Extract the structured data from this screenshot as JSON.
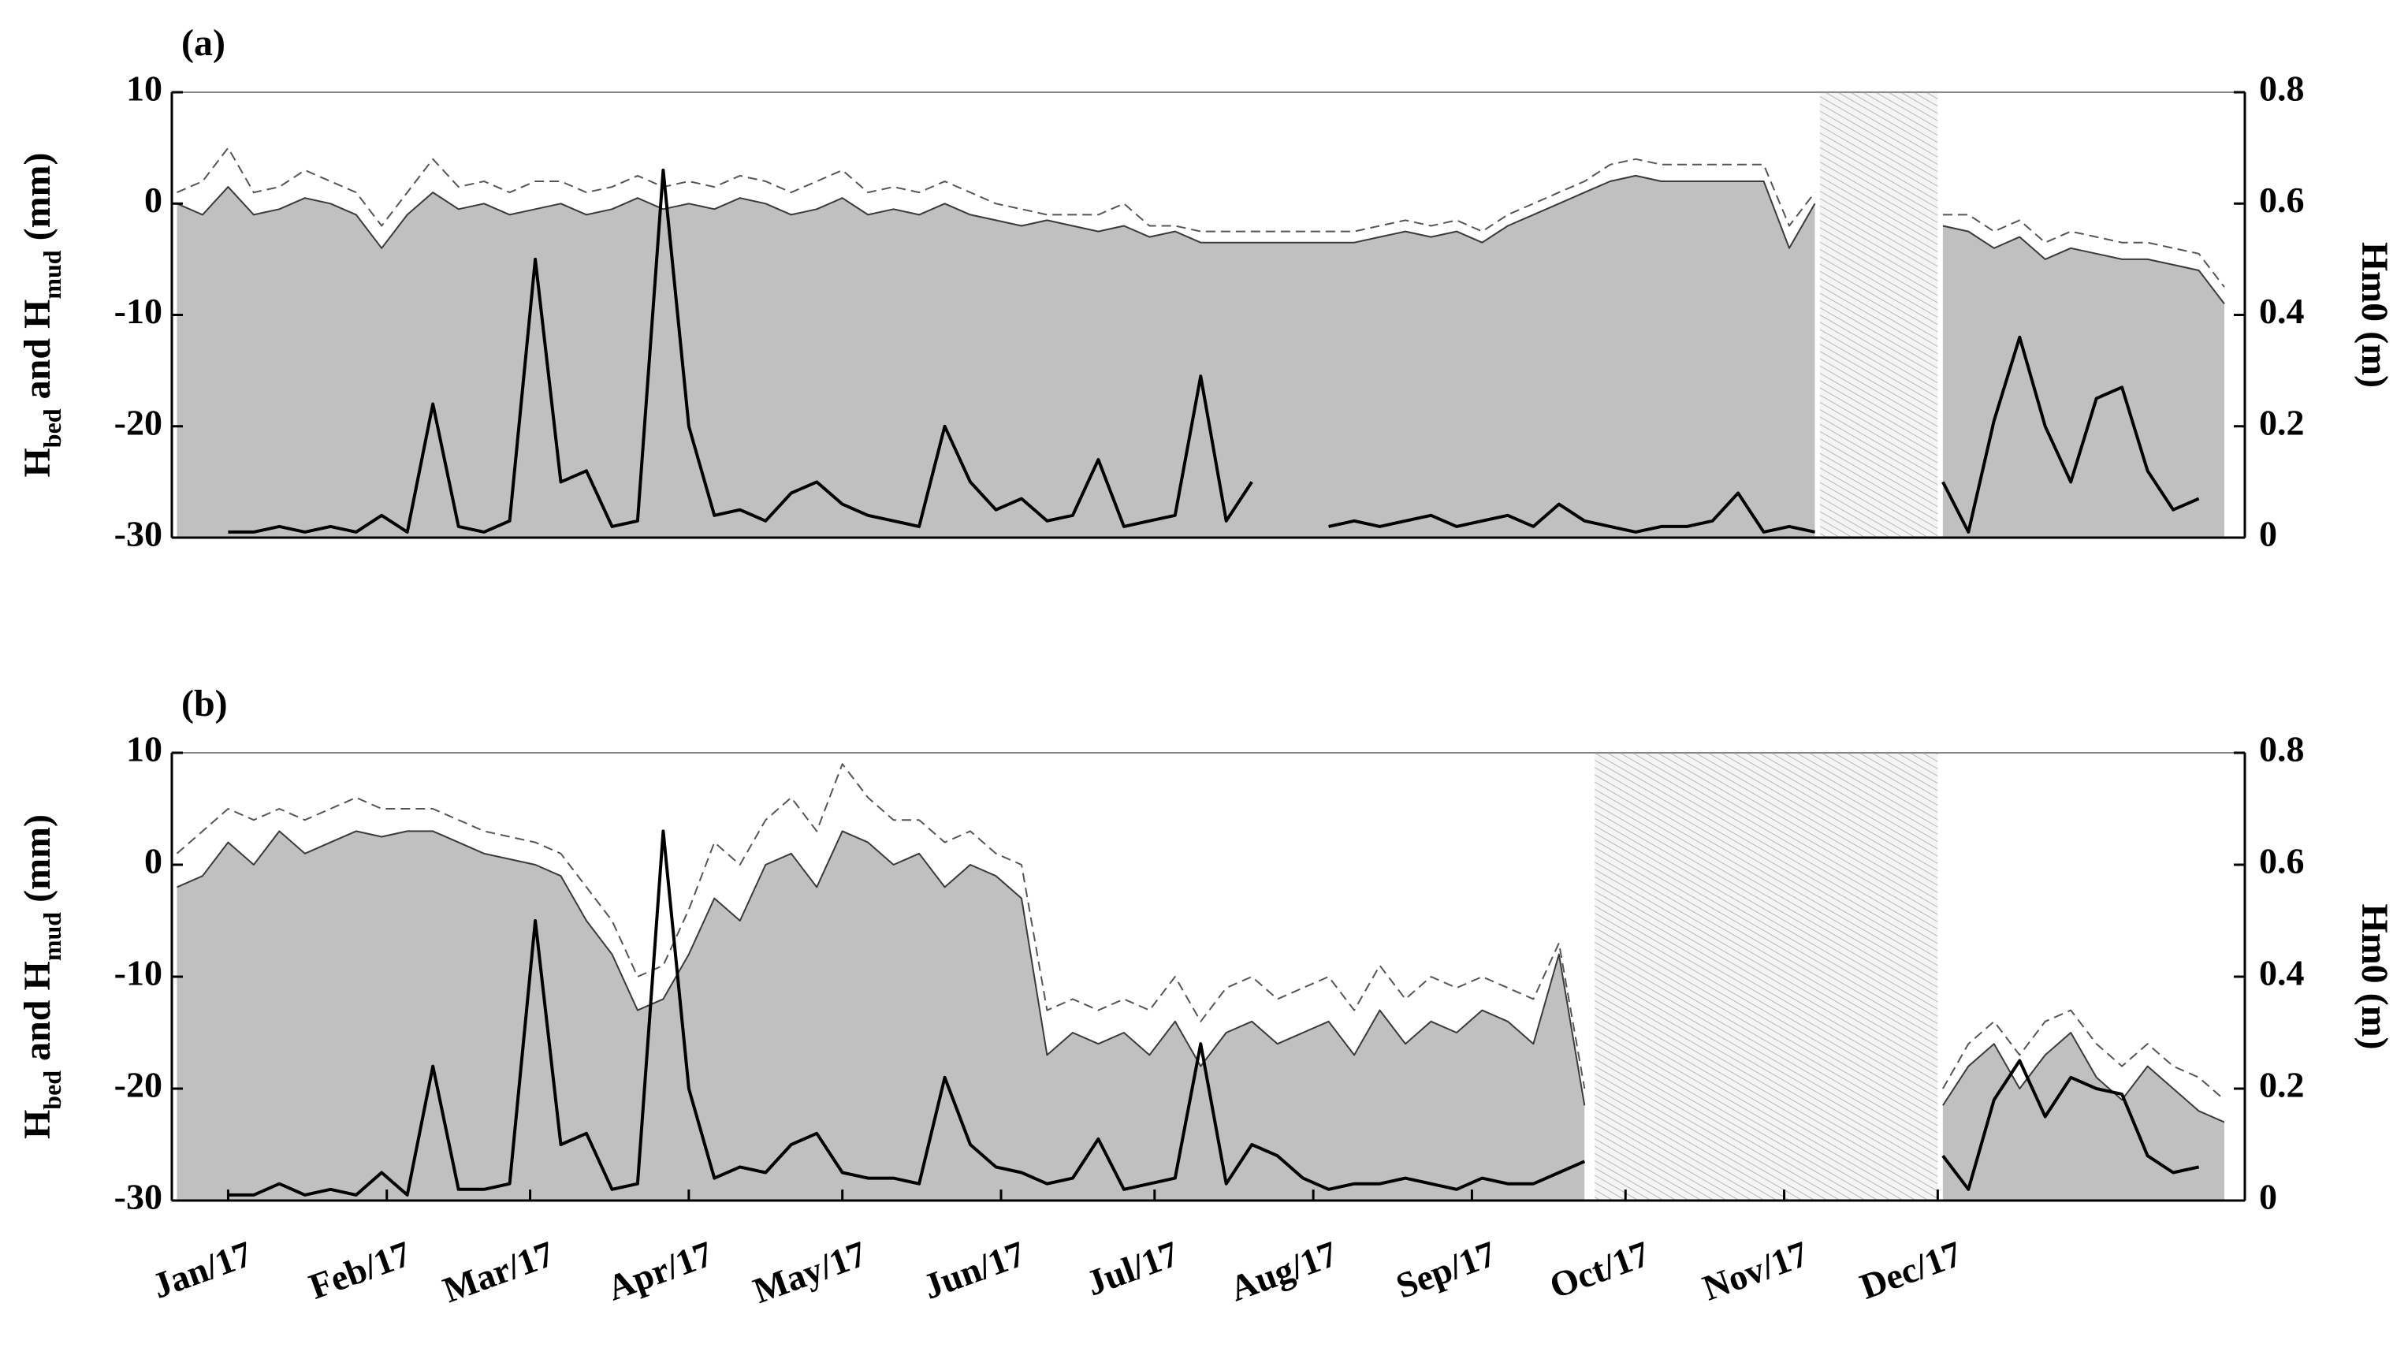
{
  "chart_data": [
    {
      "type": "line",
      "title": "(a)",
      "ylabel": [
        "H",
        "bed",
        " and H",
        "mud",
        " (mm)"
      ],
      "y2label": "Hm0 (m)",
      "xlim": [
        -11,
        394
      ],
      "ylim": [
        -30,
        10
      ],
      "yticks": [
        -30,
        -20,
        -10,
        0,
        10
      ],
      "y2lim": [
        0,
        0.8
      ],
      "y2ticks": [
        0,
        0.2,
        0.4,
        0.6,
        0.8
      ],
      "no_data_span": [
        311,
        334
      ],
      "x": [
        -10,
        -5,
        0,
        5,
        10,
        15,
        20,
        25,
        30,
        35,
        40,
        45,
        50,
        55,
        60,
        65,
        70,
        75,
        80,
        85,
        90,
        95,
        100,
        105,
        110,
        115,
        120,
        125,
        130,
        135,
        140,
        145,
        150,
        155,
        160,
        165,
        170,
        175,
        180,
        185,
        190,
        195,
        200,
        205,
        210,
        215,
        220,
        225,
        230,
        235,
        240,
        245,
        250,
        255,
        260,
        265,
        270,
        275,
        280,
        285,
        290,
        295,
        300,
        305,
        310,
        315,
        320,
        325,
        330,
        335,
        340,
        345,
        350,
        355,
        360,
        365,
        370,
        375,
        380,
        385,
        390
      ],
      "series": [
        {
          "style": "area",
          "color": "#3a3a3a",
          "fill_color": "#c0c0c0",
          "values": [
            0,
            -1,
            1.5,
            -1,
            -0.5,
            0.5,
            0,
            -1,
            -4,
            -1,
            1,
            -0.5,
            0,
            -1,
            -0.5,
            0,
            -1,
            -0.5,
            0.5,
            -0.5,
            0,
            -0.5,
            0.5,
            0,
            -1,
            -0.5,
            0.5,
            -1,
            -0.5,
            -1,
            0,
            -1,
            -1.5,
            -2,
            -1.5,
            -2,
            -2.5,
            -2,
            -3,
            -2.5,
            -3.5,
            -3.5,
            -3.5,
            -3.5,
            -3.5,
            -3.5,
            -3.5,
            -3,
            -2.5,
            -3,
            -2.5,
            -3.5,
            -2,
            -1,
            0,
            1,
            2,
            2.5,
            2,
            2,
            2,
            2,
            2,
            -4,
            0,
            null,
            null,
            null,
            null,
            -2,
            -2.5,
            -4,
            -3,
            -5,
            -4,
            -4.5,
            -5,
            -5,
            -5.5,
            -6,
            -9
          ]
        },
        {
          "style": "dashed",
          "color": "#555555",
          "values": [
            1,
            2,
            5,
            1,
            1.5,
            3,
            2,
            1,
            -2,
            1,
            4,
            1.5,
            2,
            1,
            2,
            2,
            1,
            1.5,
            2.5,
            1.5,
            2,
            1.5,
            2.5,
            2,
            1,
            2,
            3,
            1,
            1.5,
            1,
            2,
            1,
            0,
            -0.5,
            -1,
            -1,
            -1,
            0,
            -2,
            -2,
            -2.5,
            -2.5,
            -2.5,
            -2.5,
            -2.5,
            -2.5,
            -2.5,
            -2,
            -1.5,
            -2,
            -1.5,
            -2.5,
            -1,
            0,
            1,
            2,
            3.5,
            4,
            3.5,
            3.5,
            3.5,
            3.5,
            3.5,
            -2,
            1,
            null,
            null,
            null,
            null,
            -1,
            -1,
            -2.5,
            -1.5,
            -3.5,
            -2.5,
            -3,
            -3.5,
            -3.5,
            -4,
            -4.5,
            -7.5
          ]
        },
        {
          "style": "thick",
          "axis": "y2",
          "color": "#000000",
          "values": [
            null,
            null,
            0.01,
            0.01,
            0.02,
            0.01,
            0.02,
            0.01,
            0.04,
            0.01,
            0.24,
            0.02,
            0.01,
            0.03,
            0.5,
            0.1,
            0.12,
            0.02,
            0.03,
            0.66,
            0.2,
            0.04,
            0.05,
            0.03,
            0.08,
            0.1,
            0.06,
            0.04,
            0.03,
            0.02,
            0.2,
            0.1,
            0.05,
            0.07,
            0.03,
            0.04,
            0.14,
            0.02,
            0.03,
            0.04,
            0.29,
            0.03,
            0.1,
            null,
            null,
            0.02,
            0.03,
            0.02,
            0.03,
            0.04,
            0.02,
            0.03,
            0.04,
            0.02,
            0.06,
            0.03,
            0.02,
            0.01,
            0.02,
            0.02,
            0.03,
            0.08,
            0.01,
            0.02,
            0.01,
            null,
            null,
            null,
            null,
            0.1,
            0.01,
            0.21,
            0.36,
            0.2,
            0.1,
            0.25,
            0.27,
            0.12,
            0.05,
            0.07,
            null
          ]
        }
      ]
    },
    {
      "type": "line",
      "title": "(b)",
      "ylabel": [
        "H",
        "bed",
        " and H",
        "mud",
        " (mm)"
      ],
      "y2label": "Hm0 (m)",
      "xlim": [
        -11,
        394
      ],
      "ylim": [
        -30,
        10
      ],
      "yticks": [
        -30,
        -20,
        -10,
        0,
        10
      ],
      "y2lim": [
        0,
        0.8
      ],
      "y2ticks": [
        0,
        0.2,
        0.4,
        0.6,
        0.8
      ],
      "xticks": [
        {
          "value": 0,
          "label": "Jan/17"
        },
        {
          "value": 31,
          "label": "Feb/17"
        },
        {
          "value": 59,
          "label": "Mar/17"
        },
        {
          "value": 90,
          "label": "Apr/17"
        },
        {
          "value": 120,
          "label": "May/17"
        },
        {
          "value": 151,
          "label": "Jun/17"
        },
        {
          "value": 181,
          "label": "Jul/17"
        },
        {
          "value": 212,
          "label": "Aug/17"
        },
        {
          "value": 243,
          "label": "Sep/17"
        },
        {
          "value": 273,
          "label": "Oct/17"
        },
        {
          "value": 304,
          "label": "Nov/17"
        },
        {
          "value": 334,
          "label": "Dec/17"
        }
      ],
      "no_data_span": [
        267,
        334
      ],
      "x": [
        -10,
        -5,
        0,
        5,
        10,
        15,
        20,
        25,
        30,
        35,
        40,
        45,
        50,
        55,
        60,
        65,
        70,
        75,
        80,
        85,
        90,
        95,
        100,
        105,
        110,
        115,
        120,
        125,
        130,
        135,
        140,
        145,
        150,
        155,
        160,
        165,
        170,
        175,
        180,
        185,
        190,
        195,
        200,
        205,
        210,
        215,
        220,
        225,
        230,
        235,
        240,
        245,
        250,
        255,
        260,
        265,
        270,
        275,
        280,
        285,
        290,
        295,
        300,
        305,
        310,
        315,
        320,
        325,
        330,
        335,
        340,
        345,
        350,
        355,
        360,
        365,
        370,
        375,
        380,
        385,
        390
      ],
      "series": [
        {
          "style": "area",
          "color": "#3a3a3a",
          "fill_color": "#c0c0c0",
          "values": [
            -2,
            -1,
            2,
            0,
            3,
            1,
            2,
            3,
            2.5,
            3,
            3,
            2,
            1,
            0.5,
            0,
            -1,
            -5,
            -8,
            -13,
            -12,
            -8,
            -3,
            -5,
            0,
            1,
            -2,
            3,
            2,
            0,
            1,
            -2,
            0,
            -1,
            -3,
            -17,
            -15,
            -16,
            -15,
            -17,
            -14,
            -18,
            -15,
            -14,
            -16,
            -15,
            -14,
            -17,
            -13,
            -16,
            -14,
            -15,
            -13,
            -14,
            -16,
            -8,
            -21.5,
            null,
            null,
            null,
            null,
            null,
            null,
            null,
            null,
            null,
            null,
            null,
            null,
            null,
            -21.5,
            -18,
            -16,
            -20,
            -17,
            -15,
            -19,
            -21,
            -18,
            -20,
            -22,
            -23
          ]
        },
        {
          "style": "dashed",
          "color": "#555555",
          "values": [
            1,
            3,
            5,
            4,
            5,
            4,
            5,
            6,
            5,
            5,
            5,
            4,
            3,
            2.5,
            2,
            1,
            -2,
            -5,
            -10,
            -9,
            -4,
            2,
            0,
            4,
            6,
            3,
            9,
            6,
            4,
            4,
            2,
            3,
            1,
            0,
            -13,
            -12,
            -13,
            -12,
            -13,
            -10,
            -14,
            -11,
            -10,
            -12,
            -11,
            -10,
            -13,
            -9,
            -12,
            -10,
            -11,
            -10,
            -11,
            -12,
            -7,
            -20,
            null,
            null,
            null,
            null,
            null,
            null,
            null,
            null,
            null,
            null,
            null,
            null,
            null,
            -20,
            -16,
            -14,
            -17,
            -14,
            -13,
            -16,
            -18,
            -16,
            -18,
            -19,
            -21
          ]
        },
        {
          "style": "thick",
          "axis": "y2",
          "color": "#000000",
          "values": [
            null,
            null,
            0.01,
            0.01,
            0.03,
            0.01,
            0.02,
            0.01,
            0.05,
            0.01,
            0.24,
            0.02,
            0.02,
            0.03,
            0.5,
            0.1,
            0.12,
            0.02,
            0.03,
            0.66,
            0.2,
            0.04,
            0.06,
            0.05,
            0.1,
            0.12,
            0.05,
            0.04,
            0.04,
            0.03,
            0.22,
            0.1,
            0.06,
            0.05,
            0.03,
            0.04,
            0.11,
            0.02,
            0.03,
            0.04,
            0.28,
            0.03,
            0.1,
            0.08,
            0.04,
            0.02,
            0.03,
            0.03,
            0.04,
            0.03,
            0.02,
            0.04,
            0.03,
            0.03,
            0.05,
            0.07,
            null,
            null,
            null,
            null,
            null,
            null,
            null,
            null,
            null,
            null,
            null,
            null,
            null,
            0.08,
            0.02,
            0.18,
            0.25,
            0.15,
            0.22,
            0.2,
            0.19,
            0.08,
            0.05,
            0.06,
            null
          ]
        }
      ]
    }
  ]
}
